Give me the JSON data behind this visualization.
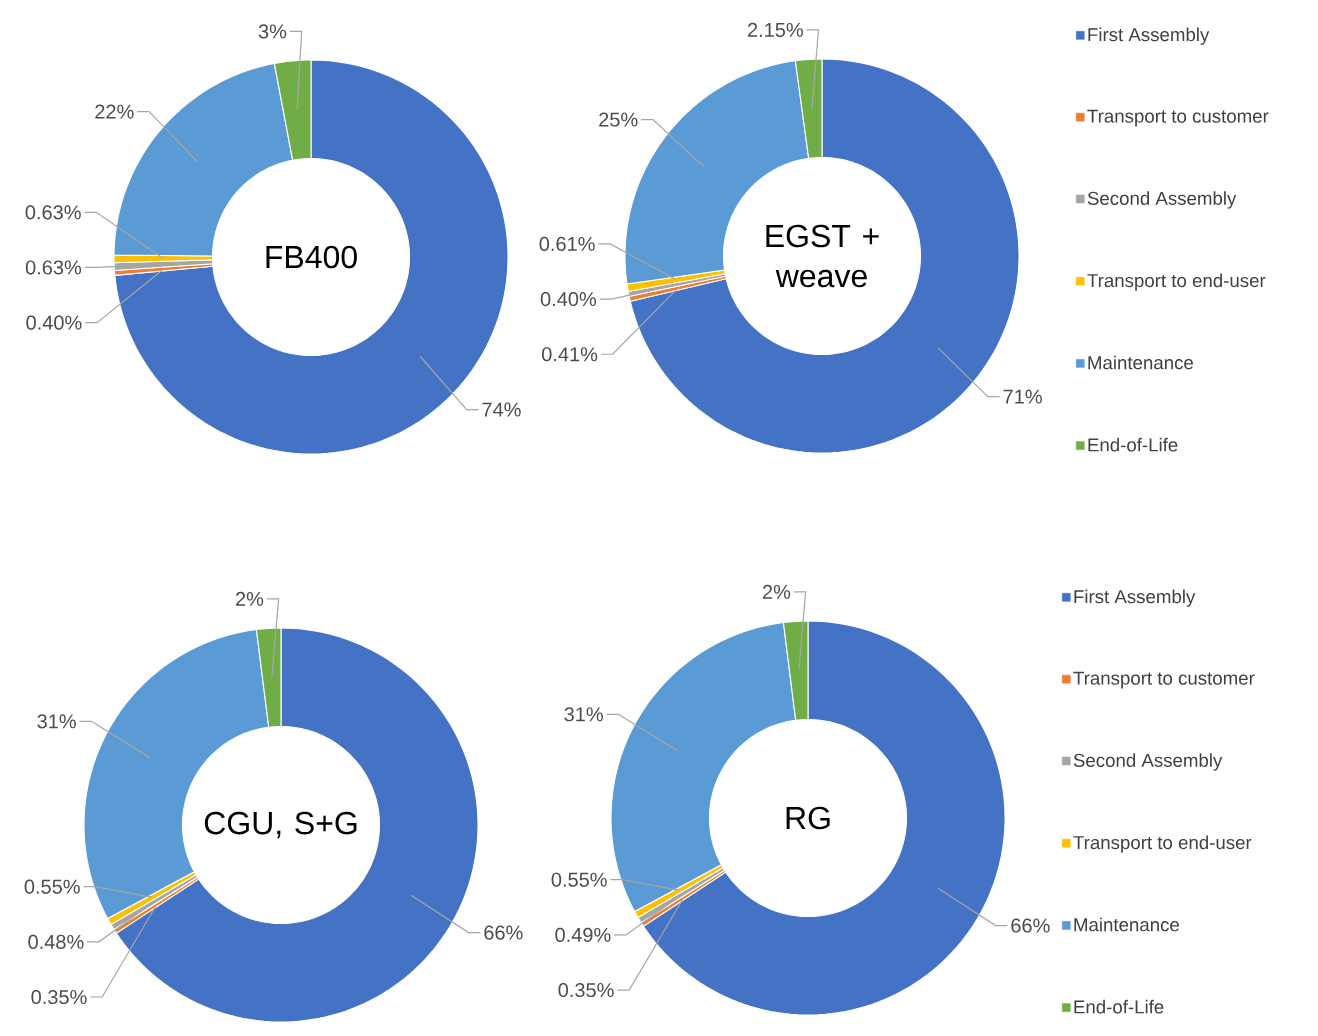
{
  "chart_data": [
    {
      "type": "donut",
      "title": "FB400",
      "categories": [
        null,
        null,
        null,
        null,
        null,
        null
      ],
      "values": [
        74,
        0.4,
        0.63,
        0.63,
        22,
        3
      ],
      "value_labels": [
        "74%",
        "0.40%",
        "0.63%",
        "0.63%",
        "22%",
        "3%"
      ],
      "colors": [
        "#4472c4",
        "#ed7d31",
        "#a5a5a5",
        "#ffc000",
        "#5b9bd5",
        "#70ad47"
      ],
      "legend": false
    },
    {
      "type": "donut",
      "title": "EGST + weave",
      "categories": [
        "First Assembly",
        "Transport to customer",
        "Second Assembly",
        "Transport to end-user",
        "Maintenance",
        "End-of-Life"
      ],
      "values": [
        71,
        0.41,
        0.4,
        0.61,
        25,
        2.15
      ],
      "value_labels": [
        "71%",
        "0.41%",
        "0.40%",
        "0.61%",
        "25%",
        "2.15%"
      ],
      "colors": [
        "#4472c4",
        "#ed7d31",
        "#a5a5a5",
        "#ffc000",
        "#5b9bd5",
        "#70ad47"
      ],
      "legend": "right"
    },
    {
      "type": "donut",
      "title": "CGU, S+G",
      "categories": [
        null,
        null,
        null,
        null,
        null,
        null
      ],
      "values": [
        66,
        0.35,
        0.48,
        0.55,
        31,
        2
      ],
      "value_labels": [
        "66%",
        "0.35%",
        "0.48%",
        "0.55%",
        "31%",
        "2%"
      ],
      "colors": [
        "#4472c4",
        "#ed7d31",
        "#a5a5a5",
        "#ffc000",
        "#5b9bd5",
        "#70ad47"
      ],
      "legend": false
    },
    {
      "type": "donut",
      "title": "RG",
      "categories": [
        "First Assembly",
        "Transport to customer",
        "Second Assembly",
        "Transport to end-user",
        "Maintenance",
        "End-of-Life"
      ],
      "values": [
        66,
        0.35,
        0.49,
        0.55,
        31,
        2
      ],
      "value_labels": [
        "66%",
        "0.35%",
        "0.49%",
        "0.55%",
        "31%",
        "2%"
      ],
      "colors": [
        "#4472c4",
        "#ed7d31",
        "#a5a5a5",
        "#ffc000",
        "#5b9bd5",
        "#70ad47"
      ],
      "legend": "right"
    }
  ]
}
